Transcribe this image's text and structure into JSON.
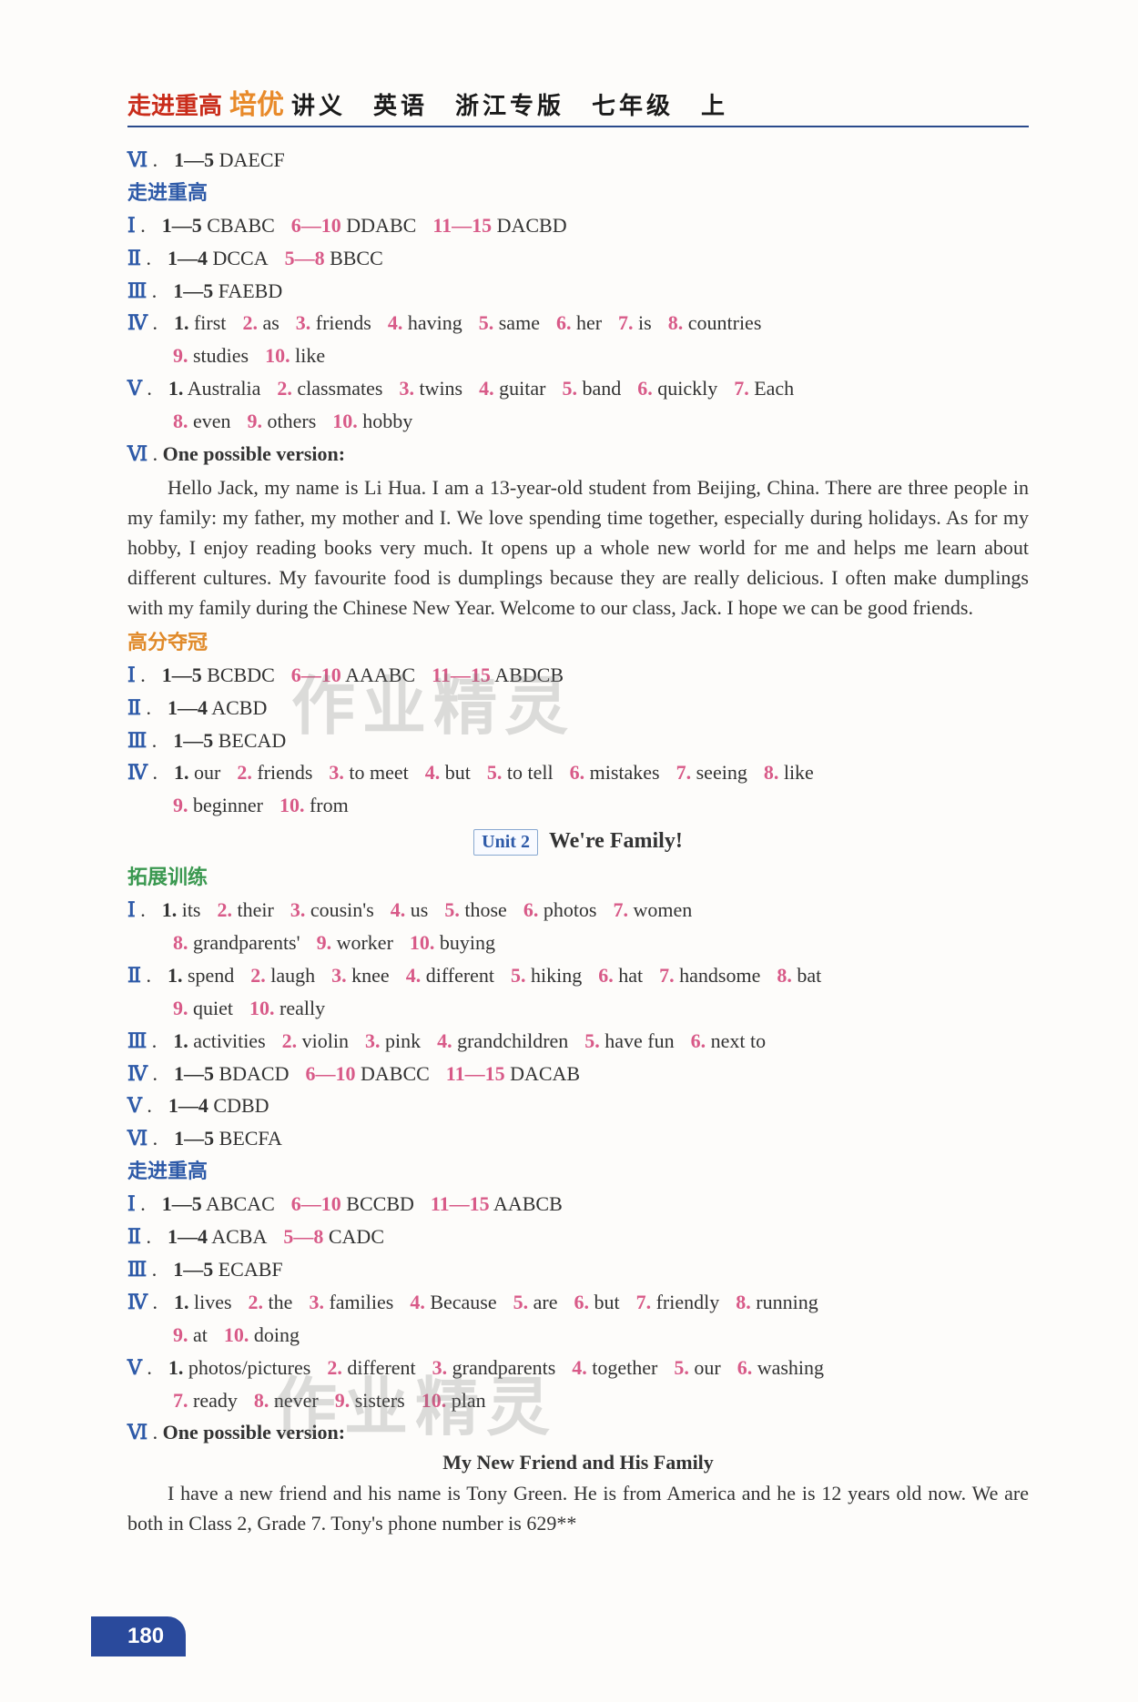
{
  "header": {
    "brand1": "走进重高",
    "brand2": "培优",
    "rest": "讲义　英语　浙江专版　七年级　上"
  },
  "page_number": "180",
  "watermarks": [
    "作业精灵",
    "作业精灵"
  ],
  "unit2": {
    "box": "Unit 2",
    "title": "We're Family!"
  },
  "blocks": [
    {
      "type": "row",
      "roman": "Ⅵ",
      "items": [
        {
          "k": "1—5",
          "v": "DAECF"
        }
      ]
    },
    {
      "type": "section-blue",
      "text": "走进重高"
    },
    {
      "type": "row",
      "roman": "Ⅰ",
      "items": [
        {
          "k": "1—5",
          "v": "CBABC"
        },
        {
          "kpink": "6—10",
          "v": "DDABC"
        },
        {
          "kpink": "11—15",
          "v": "DACBD"
        }
      ]
    },
    {
      "type": "row",
      "roman": "Ⅱ",
      "items": [
        {
          "k": "1—4",
          "v": "DCCA"
        },
        {
          "kpink": "5—8",
          "v": "BBCC"
        }
      ]
    },
    {
      "type": "row",
      "roman": "Ⅲ",
      "items": [
        {
          "k": "1—5",
          "v": "FAEBD"
        }
      ]
    },
    {
      "type": "row",
      "roman": "Ⅳ",
      "items": [
        {
          "k": "1.",
          "v": "first"
        },
        {
          "kpink": "2.",
          "v": "as"
        },
        {
          "kpink": "3.",
          "v": "friends"
        },
        {
          "kpink": "4.",
          "v": "having"
        },
        {
          "kpink": "5.",
          "v": "same"
        },
        {
          "kpink": "6.",
          "v": "her"
        },
        {
          "kpink": "7.",
          "v": "is"
        },
        {
          "kpink": "8.",
          "v": "countries"
        }
      ]
    },
    {
      "type": "rowsub",
      "items": [
        {
          "kpink": "9.",
          "v": "studies"
        },
        {
          "kpink": "10.",
          "v": "like"
        }
      ]
    },
    {
      "type": "row",
      "roman": "Ⅴ",
      "items": [
        {
          "k": "1.",
          "v": "Australia"
        },
        {
          "kpink": "2.",
          "v": "classmates"
        },
        {
          "kpink": "3.",
          "v": "twins"
        },
        {
          "kpink": "4.",
          "v": "guitar"
        },
        {
          "kpink": "5.",
          "v": "band"
        },
        {
          "kpink": "6.",
          "v": "quickly"
        },
        {
          "kpink": "7.",
          "v": "Each"
        }
      ]
    },
    {
      "type": "rowsub",
      "items": [
        {
          "kpink": "8.",
          "v": "even"
        },
        {
          "kpink": "9.",
          "v": "others"
        },
        {
          "kpink": "10.",
          "v": "hobby"
        }
      ]
    },
    {
      "type": "lead",
      "roman": "Ⅵ",
      "text": "One possible version:"
    },
    {
      "type": "para-indent",
      "text": "Hello Jack, my name is Li Hua. I am a 13-year-old student from Beijing, China. There are three people in my family: my father, my mother and I. We love spending time together, especially during holidays. As for my hobby, I enjoy reading books very much. It opens up a whole new world for me and helps me learn about different cultures. My favourite food is dumplings because they are really delicious. I often make dumplings with my family during the Chinese New Year. Welcome to our class, Jack. I hope we can be good friends."
    },
    {
      "type": "section-orange",
      "text": "高分夺冠"
    },
    {
      "type": "row",
      "roman": "Ⅰ",
      "items": [
        {
          "k": "1—5",
          "v": "BCBDC"
        },
        {
          "kpink": "6—10",
          "v": "AAABC"
        },
        {
          "kpink": "11—15",
          "v": "ABDCB"
        }
      ]
    },
    {
      "type": "row",
      "roman": "Ⅱ",
      "items": [
        {
          "k": "1—4",
          "v": "ACBD"
        }
      ]
    },
    {
      "type": "row",
      "roman": "Ⅲ",
      "items": [
        {
          "k": "1—5",
          "v": "BECAD"
        }
      ]
    },
    {
      "type": "row",
      "roman": "Ⅳ",
      "items": [
        {
          "k": "1.",
          "v": "our"
        },
        {
          "kpink": "2.",
          "v": "friends"
        },
        {
          "kpink": "3.",
          "v": "to meet"
        },
        {
          "kpink": "4.",
          "v": "but"
        },
        {
          "kpink": "5.",
          "v": "to tell"
        },
        {
          "kpink": "6.",
          "v": "mistakes"
        },
        {
          "kpink": "7.",
          "v": "seeing"
        },
        {
          "kpink": "8.",
          "v": "like"
        }
      ]
    },
    {
      "type": "rowsub",
      "items": [
        {
          "kpink": "9.",
          "v": "beginner"
        },
        {
          "kpink": "10.",
          "v": "from"
        }
      ]
    },
    {
      "type": "unit"
    },
    {
      "type": "section-green",
      "text": "拓展训练"
    },
    {
      "type": "row",
      "roman": "Ⅰ",
      "items": [
        {
          "k": "1.",
          "v": "its"
        },
        {
          "kpink": "2.",
          "v": "their"
        },
        {
          "kpink": "3.",
          "v": "cousin's"
        },
        {
          "kpink": "4.",
          "v": "us"
        },
        {
          "kpink": "5.",
          "v": "those"
        },
        {
          "kpink": "6.",
          "v": "photos"
        },
        {
          "kpink": "7.",
          "v": "women"
        }
      ]
    },
    {
      "type": "rowsub",
      "items": [
        {
          "kpink": "8.",
          "v": "grandparents'"
        },
        {
          "kpink": "9.",
          "v": "worker"
        },
        {
          "kpink": "10.",
          "v": "buying"
        }
      ]
    },
    {
      "type": "row",
      "roman": "Ⅱ",
      "items": [
        {
          "k": "1.",
          "v": "spend"
        },
        {
          "kpink": "2.",
          "v": "laugh"
        },
        {
          "kpink": "3.",
          "v": "knee"
        },
        {
          "kpink": "4.",
          "v": "different"
        },
        {
          "kpink": "5.",
          "v": "hiking"
        },
        {
          "kpink": "6.",
          "v": "hat"
        },
        {
          "kpink": "7.",
          "v": "handsome"
        },
        {
          "kpink": "8.",
          "v": "bat"
        }
      ]
    },
    {
      "type": "rowsub",
      "items": [
        {
          "kpink": "9.",
          "v": "quiet"
        },
        {
          "kpink": "10.",
          "v": "really"
        }
      ]
    },
    {
      "type": "row",
      "roman": "Ⅲ",
      "items": [
        {
          "k": "1.",
          "v": "activities"
        },
        {
          "kpink": "2.",
          "v": "violin"
        },
        {
          "kpink": "3.",
          "v": "pink"
        },
        {
          "kpink": "4.",
          "v": "grandchildren"
        },
        {
          "kpink": "5.",
          "v": "have fun"
        },
        {
          "kpink": "6.",
          "v": "next to"
        }
      ]
    },
    {
      "type": "row",
      "roman": "Ⅳ",
      "items": [
        {
          "k": "1—5",
          "v": "BDACD"
        },
        {
          "kpink": "6—10",
          "v": "DABCC"
        },
        {
          "kpink": "11—15",
          "v": "DACAB"
        }
      ]
    },
    {
      "type": "row",
      "roman": "Ⅴ",
      "items": [
        {
          "k": "1—4",
          "v": "CDBD"
        }
      ]
    },
    {
      "type": "row",
      "roman": "Ⅵ",
      "items": [
        {
          "k": "1—5",
          "v": "BECFA"
        }
      ]
    },
    {
      "type": "section-blue",
      "text": "走进重高"
    },
    {
      "type": "row",
      "roman": "Ⅰ",
      "items": [
        {
          "k": "1—5",
          "v": "ABCAC"
        },
        {
          "kpink": "6—10",
          "v": "BCCBD"
        },
        {
          "kpink": "11—15",
          "v": "AABCB"
        }
      ]
    },
    {
      "type": "row",
      "roman": "Ⅱ",
      "items": [
        {
          "k": "1—4",
          "v": "ACBA"
        },
        {
          "kpink": "5—8",
          "v": "CADC"
        }
      ]
    },
    {
      "type": "row",
      "roman": "Ⅲ",
      "items": [
        {
          "k": "1—5",
          "v": "ECABF"
        }
      ]
    },
    {
      "type": "row",
      "roman": "Ⅳ",
      "items": [
        {
          "k": "1.",
          "v": "lives"
        },
        {
          "kpink": "2.",
          "v": "the"
        },
        {
          "kpink": "3.",
          "v": "families"
        },
        {
          "kpink": "4.",
          "v": "Because"
        },
        {
          "kpink": "5.",
          "v": "are"
        },
        {
          "kpink": "6.",
          "v": "but"
        },
        {
          "kpink": "7.",
          "v": "friendly"
        },
        {
          "kpink": "8.",
          "v": "running"
        }
      ]
    },
    {
      "type": "rowsub",
      "items": [
        {
          "kpink": "9.",
          "v": "at"
        },
        {
          "kpink": "10.",
          "v": "doing"
        }
      ]
    },
    {
      "type": "row",
      "roman": "Ⅴ",
      "items": [
        {
          "k": "1.",
          "v": "photos/pictures"
        },
        {
          "kpink": "2.",
          "v": "different"
        },
        {
          "kpink": "3.",
          "v": "grandparents"
        },
        {
          "kpink": "4.",
          "v": "together"
        },
        {
          "kpink": "5.",
          "v": "our"
        },
        {
          "kpink": "6.",
          "v": "washing"
        }
      ]
    },
    {
      "type": "rowsub",
      "items": [
        {
          "kpink": "7.",
          "v": "ready"
        },
        {
          "kpink": "8.",
          "v": "never"
        },
        {
          "kpink": "9.",
          "v": "sisters"
        },
        {
          "kpink": "10.",
          "v": "plan"
        }
      ]
    },
    {
      "type": "lead",
      "roman": "Ⅵ",
      "text": "One possible version:"
    },
    {
      "type": "essay-title",
      "text": "My New Friend and His Family"
    },
    {
      "type": "para-indent",
      "text": "I have a new friend and his name is Tony Green. He is from America and he is 12 years old now. We are both in Class 2, Grade 7. Tony's phone number is 629**"
    }
  ]
}
